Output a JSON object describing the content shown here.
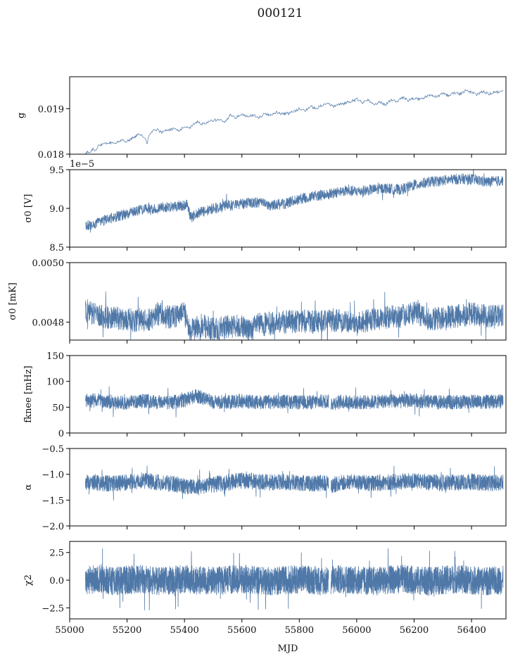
{
  "figure": {
    "title": "000121",
    "xlabel": "MJD",
    "line_color": "#4f78a8",
    "axis_color": "#000000",
    "background": "#ffffff"
  },
  "chart_data": [
    {
      "type": "line",
      "title": "",
      "ylabel": "g",
      "ylabel_math": "g",
      "ylim": [
        0.018,
        0.0197
      ],
      "yticks": [
        0.018,
        0.019
      ],
      "ytick_labels": [
        "0.018",
        "0.019"
      ],
      "offset_text": "",
      "xlim": [
        55000,
        56520
      ],
      "grid": false,
      "series": [
        {
          "x": [
            55055,
            55060,
            55070,
            55080,
            55090,
            55100,
            55120,
            55140,
            55160,
            55180,
            55200,
            55220,
            55240,
            55260,
            55270,
            55280,
            55300,
            55320,
            55340,
            55360,
            55380,
            55400,
            55420,
            55440,
            55460,
            55480,
            55500,
            55520,
            55540,
            55560,
            55580,
            55600,
            55620,
            55640,
            55660,
            55680,
            55700,
            55720,
            55740,
            55760,
            55780,
            55800,
            55820,
            55840,
            55860,
            55880,
            55900,
            55920,
            55940,
            55960,
            55980,
            56000,
            56020,
            56040,
            56060,
            56080,
            56100,
            56120,
            56140,
            56160,
            56180,
            56200,
            56220,
            56240,
            56260,
            56280,
            56300,
            56320,
            56340,
            56360,
            56380,
            56400,
            56420,
            56440,
            56460,
            56480,
            56500,
            56510
          ],
          "y": [
            0.018,
            0.01806,
            0.018,
            0.01812,
            0.01808,
            0.01818,
            0.01822,
            0.01825,
            0.01824,
            0.0183,
            0.01828,
            0.01836,
            0.01843,
            0.01838,
            0.01825,
            0.01846,
            0.01855,
            0.01848,
            0.01852,
            0.01856,
            0.0185,
            0.01862,
            0.01858,
            0.01872,
            0.01866,
            0.0187,
            0.01874,
            0.01876,
            0.0187,
            0.01886,
            0.0188,
            0.01888,
            0.01882,
            0.01886,
            0.0188,
            0.0189,
            0.01885,
            0.01892,
            0.01888,
            0.0189,
            0.01893,
            0.019,
            0.01896,
            0.01905,
            0.019,
            0.01908,
            0.01912,
            0.01904,
            0.0191,
            0.01913,
            0.01916,
            0.01922,
            0.01912,
            0.01918,
            0.0191,
            0.01914,
            0.01908,
            0.0192,
            0.01916,
            0.01924,
            0.01918,
            0.01923,
            0.0192,
            0.01926,
            0.0193,
            0.01925,
            0.01934,
            0.01928,
            0.01936,
            0.01932,
            0.0194,
            0.01935,
            0.01931,
            0.01938,
            0.01932,
            0.01936,
            0.01939,
            0.0194
          ]
        }
      ]
    },
    {
      "type": "line",
      "title": "",
      "ylabel": "σ0 [V]",
      "ylabel_math": "σ0 [V]",
      "ylim": [
        8.5e-05,
        9.5e-05
      ],
      "yticks": [
        8.5e-05,
        9e-05,
        9.5e-05
      ],
      "ytick_labels": [
        "8.5",
        "9.0",
        "9.5"
      ],
      "offset_text": "1e−5",
      "xlim": [
        55000,
        56520
      ],
      "grid": false,
      "series": [
        {
          "x": [
            55055,
            55100,
            55150,
            55200,
            55250,
            55300,
            55350,
            55400,
            55410,
            55420,
            55450,
            55500,
            55550,
            55600,
            55650,
            55700,
            55750,
            55800,
            55850,
            55900,
            55950,
            56000,
            56050,
            56100,
            56150,
            56200,
            56250,
            56300,
            56350,
            56400,
            56450,
            56510
          ],
          "y": [
            8.77e-05,
            8.82e-05,
            8.88e-05,
            8.93e-05,
            8.98e-05,
            9e-05,
            9.02e-05,
            9.04e-05,
            9.07e-05,
            8.88e-05,
            8.94e-05,
            9e-05,
            9.04e-05,
            9.06e-05,
            9.08e-05,
            9.04e-05,
            9.06e-05,
            9.12e-05,
            9.16e-05,
            9.18e-05,
            9.22e-05,
            9.22e-05,
            9.24e-05,
            9.26e-05,
            9.24e-05,
            9.3e-05,
            9.34e-05,
            9.36e-05,
            9.38e-05,
            9.38e-05,
            9.34e-05,
            9.36e-05
          ]
        }
      ]
    },
    {
      "type": "line",
      "title": "",
      "ylabel": "σ0 [mK]",
      "ylabel_math": "σ0 [mK]",
      "ylim": [
        0.00474,
        0.005
      ],
      "yticks": [
        0.0048,
        0.005
      ],
      "ytick_labels": [
        "0.0048",
        "0.0050"
      ],
      "offset_text": "",
      "xlim": [
        55000,
        56520
      ],
      "grid": false,
      "series": [
        {
          "x": [
            55055,
            55100,
            55150,
            55200,
            55230,
            55250,
            55270,
            55300,
            55350,
            55400,
            55420,
            55440,
            55460,
            55500,
            55550,
            55600,
            55630,
            55650,
            55700,
            55750,
            55800,
            55850,
            55900,
            55950,
            56000,
            56050,
            56100,
            56150,
            56200,
            56230,
            56250,
            56300,
            56350,
            56400,
            56450,
            56510
          ],
          "y": [
            0.00484,
            0.00482,
            0.004815,
            0.00481,
            0.004805,
            0.00481,
            0.0048,
            0.00483,
            0.004815,
            0.00483,
            0.00477,
            0.00478,
            0.00479,
            0.004775,
            0.004785,
            0.00479,
            0.00477,
            0.00479,
            0.004795,
            0.0048,
            0.004805,
            0.0048,
            0.00481,
            0.004805,
            0.0048,
            0.004805,
            0.004815,
            0.00482,
            0.00483,
            0.004825,
            0.00481,
            0.004815,
            0.00482,
            0.00483,
            0.00482,
            0.004825
          ]
        }
      ]
    },
    {
      "type": "line",
      "title": "",
      "ylabel": "fknee [mHz]",
      "ylabel_math": "fknee [mHz]",
      "ylim": [
        0,
        150
      ],
      "yticks": [
        0,
        50,
        100,
        150
      ],
      "ytick_labels": [
        "0",
        "50",
        "100",
        "150"
      ],
      "offset_text": "",
      "xlim": [
        55000,
        56520
      ],
      "grid": false,
      "series": [
        {
          "x": [
            55055,
            55100,
            55150,
            55200,
            55250,
            55300,
            55350,
            55400,
            55440,
            55500,
            55550,
            55600,
            55650,
            55700,
            55750,
            55800,
            55850,
            55900,
            55910,
            55950,
            56000,
            56050,
            56100,
            56150,
            56200,
            56250,
            56300,
            56350,
            56400,
            56450,
            56510
          ],
          "y": [
            62,
            64,
            60,
            58,
            62,
            60,
            59,
            63,
            72,
            61,
            60,
            62,
            59,
            60,
            61,
            59,
            60,
            62,
            57,
            61,
            59,
            60,
            62,
            61,
            64,
            60,
            59,
            60,
            61,
            60,
            62
          ]
        }
      ]
    },
    {
      "type": "line",
      "title": "",
      "ylabel": "α",
      "ylabel_math": "α",
      "ylim": [
        -2.0,
        -0.5
      ],
      "yticks": [
        -2.0,
        -1.5,
        -1.0,
        -0.5
      ],
      "ytick_labels": [
        "−2.0",
        "−1.5",
        "−1.0",
        "−0.5"
      ],
      "offset_text": "",
      "xlim": [
        55000,
        56520
      ],
      "grid": false,
      "series": [
        {
          "x": [
            55055,
            55100,
            55150,
            55200,
            55250,
            55300,
            55350,
            55400,
            55450,
            55500,
            55550,
            55600,
            55650,
            55700,
            55750,
            55800,
            55850,
            55900,
            55910,
            55950,
            56000,
            56050,
            56100,
            56150,
            56200,
            56250,
            56300,
            56350,
            56400,
            56450,
            56510
          ],
          "y": [
            -1.15,
            -1.17,
            -1.18,
            -1.16,
            -1.12,
            -1.15,
            -1.18,
            -1.22,
            -1.25,
            -1.2,
            -1.15,
            -1.12,
            -1.14,
            -1.16,
            -1.15,
            -1.17,
            -1.18,
            -1.16,
            -1.22,
            -1.15,
            -1.16,
            -1.18,
            -1.16,
            -1.14,
            -1.12,
            -1.15,
            -1.17,
            -1.16,
            -1.14,
            -1.17,
            -1.16
          ]
        }
      ]
    },
    {
      "type": "line",
      "title": "",
      "ylabel": "χ2",
      "ylabel_math": "χ2",
      "ylim": [
        -3.5,
        3.5
      ],
      "yticks": [
        -2.5,
        0.0,
        2.5
      ],
      "ytick_labels": [
        "−2.5",
        "0.0",
        "2.5"
      ],
      "offset_text": "",
      "xlim": [
        55000,
        56520
      ],
      "grid": false,
      "series": [
        {
          "x": [
            55055,
            55100,
            55150,
            55200,
            55250,
            55300,
            55350,
            55400,
            55450,
            55500,
            55550,
            55600,
            55650,
            55700,
            55750,
            55800,
            55850,
            55900,
            55910,
            55950,
            56000,
            56050,
            56100,
            56150,
            56200,
            56250,
            56300,
            56350,
            56400,
            56450,
            56510
          ],
          "y": [
            0.0,
            0.1,
            -0.1,
            0.0,
            0.1,
            -0.1,
            0.0,
            0.1,
            0.0,
            -0.1,
            0.0,
            0.1,
            0.0,
            -0.1,
            0.0,
            0.1,
            0.0,
            -0.1,
            0.0,
            0.1,
            0.0,
            -0.1,
            0.0,
            0.1,
            0.0,
            -0.1,
            0.0,
            0.1,
            0.0,
            -0.1,
            0.0
          ]
        }
      ]
    }
  ],
  "shared_x": {
    "xticks": [
      55000,
      55200,
      55400,
      55600,
      55800,
      56000,
      56200,
      56400
    ],
    "xtick_labels": [
      "55000",
      "55200",
      "55400",
      "55600",
      "55800",
      "56000",
      "56200",
      "56400"
    ],
    "xlim": [
      55000,
      56520
    ]
  }
}
